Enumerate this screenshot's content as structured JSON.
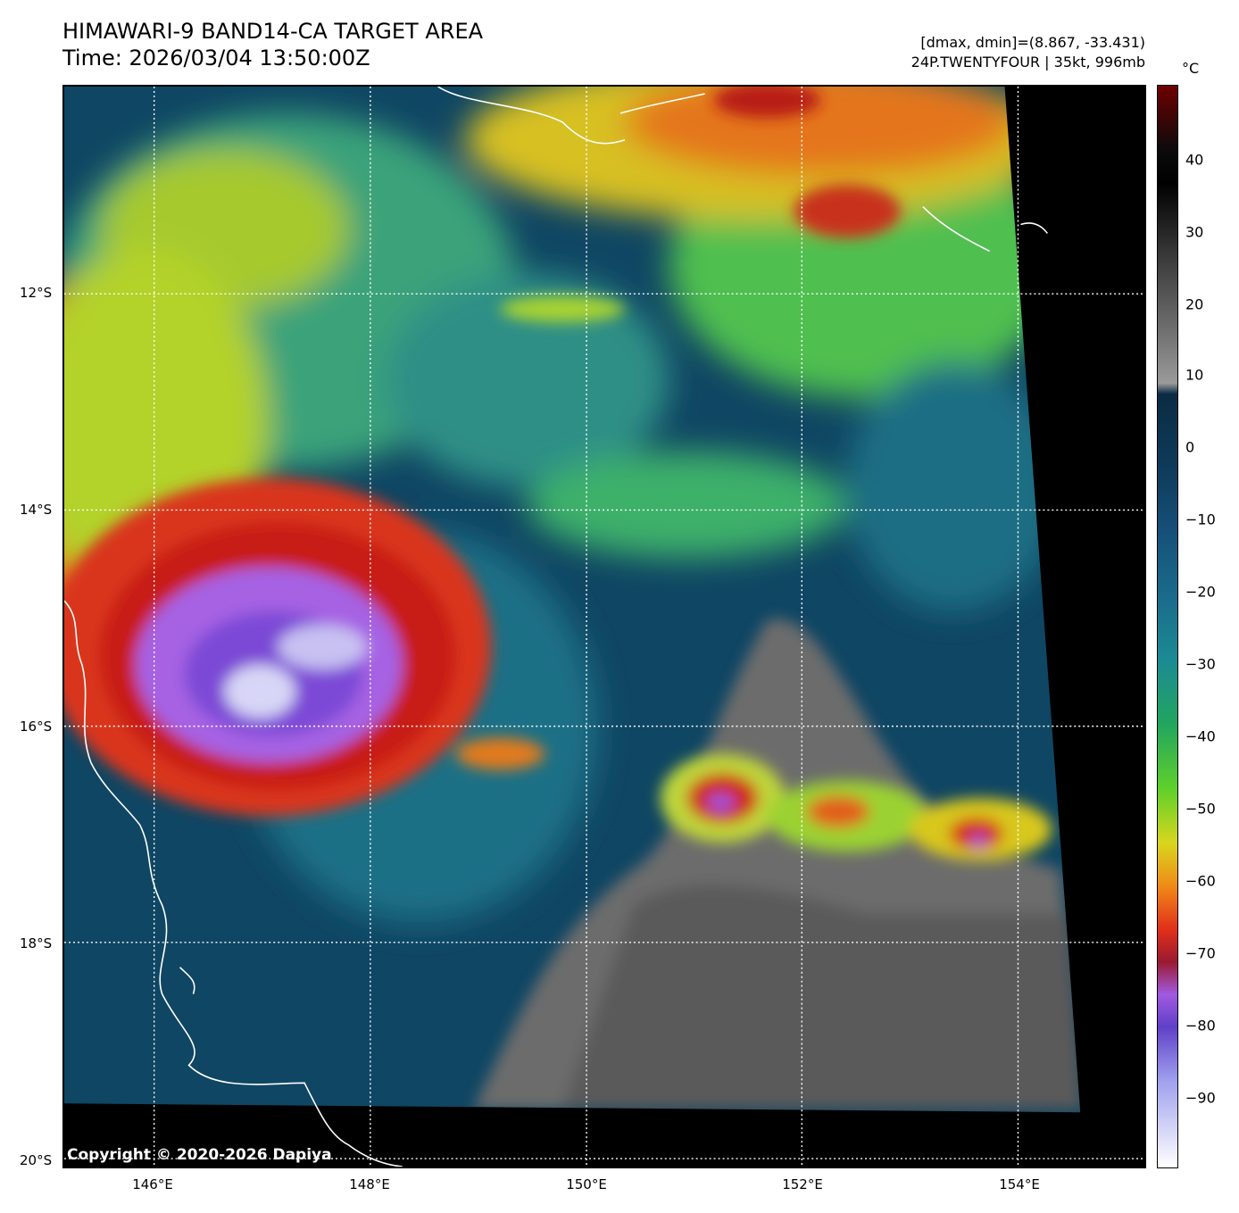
{
  "header": {
    "title_line1": "HIMAWARI-9 BAND14-CA TARGET AREA",
    "title_line2": "Time: 2026/03/04 13:50:00Z",
    "dmax_dmin": "[dmax, dmin]=(8.867, -33.431)",
    "storm_info": "24P.TWENTYFOUR | 35kt, 996mb"
  },
  "map": {
    "lat_labels": [
      "12°S",
      "14°S",
      "16°S",
      "18°S",
      "20°S"
    ],
    "lon_labels": [
      "146°E",
      "148°E",
      "150°E",
      "152°E",
      "154°E"
    ],
    "copyright": "Copyright © 2020-2026 Dapiya"
  },
  "colorbar": {
    "unit": "°C",
    "labels": [
      "40",
      "30",
      "20",
      "10",
      "0",
      "−10",
      "−20",
      "−30",
      "−40",
      "−50",
      "−60",
      "−70",
      "−80",
      "−90"
    ]
  }
}
